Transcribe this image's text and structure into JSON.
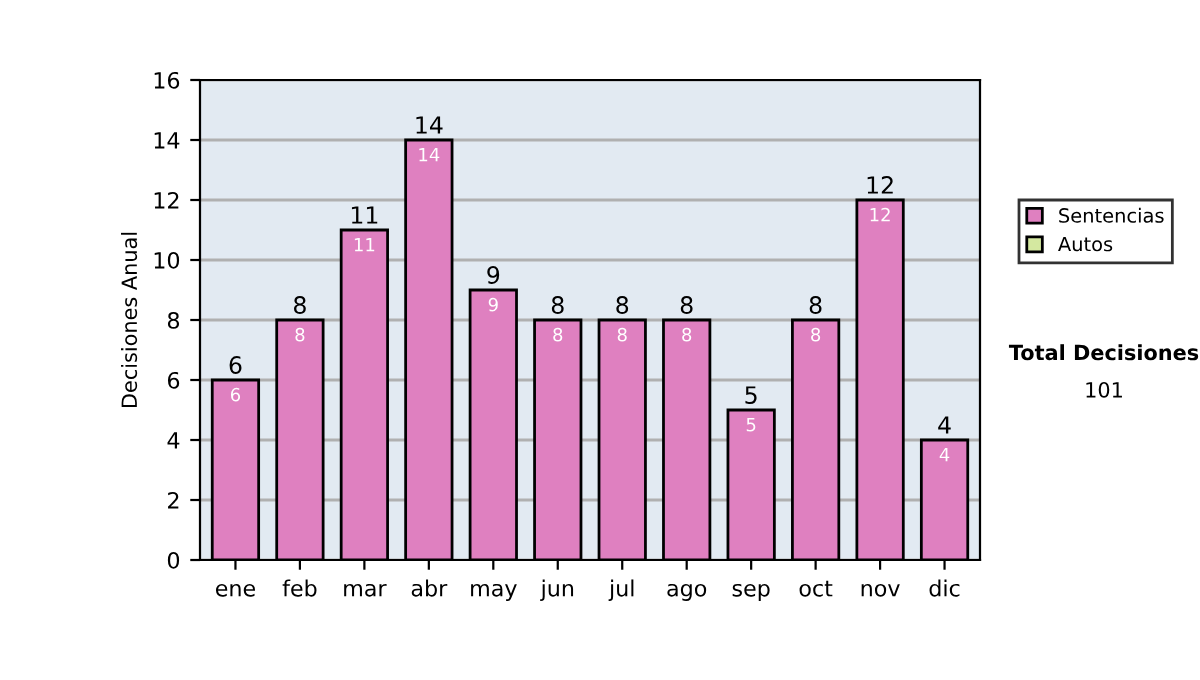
{
  "chart_data": {
    "type": "bar",
    "stacked": true,
    "ylabel": "Decisiones Anual",
    "categories": [
      "ene",
      "feb",
      "mar",
      "abr",
      "may",
      "jun",
      "jul",
      "ago",
      "sep",
      "oct",
      "nov",
      "dic"
    ],
    "series": [
      {
        "name": "Sentencias",
        "color": "#df80c0",
        "values": [
          6,
          8,
          11,
          14,
          9,
          8,
          8,
          8,
          5,
          8,
          12,
          4
        ],
        "value_labels": [
          "6",
          "8",
          "11",
          "14",
          "9",
          "8",
          "8",
          "8",
          "5",
          "8",
          "12",
          "4"
        ]
      },
      {
        "name": "Autos",
        "color": "#d4e8a0",
        "values": [
          null,
          null,
          null,
          null,
          null,
          null,
          null,
          null,
          null,
          null,
          null,
          null
        ]
      }
    ],
    "totals": [
      "6",
      "8",
      "11",
      "14",
      "9",
      "8",
      "8",
      "8",
      "5",
      "8",
      "12",
      "4"
    ],
    "ylim": [
      0,
      16
    ],
    "yticks": [
      0,
      2,
      4,
      6,
      8,
      10,
      12,
      14,
      16
    ],
    "grid": "y",
    "legend": "right",
    "annotations": [
      "Total Decisiones",
      "101"
    ]
  }
}
